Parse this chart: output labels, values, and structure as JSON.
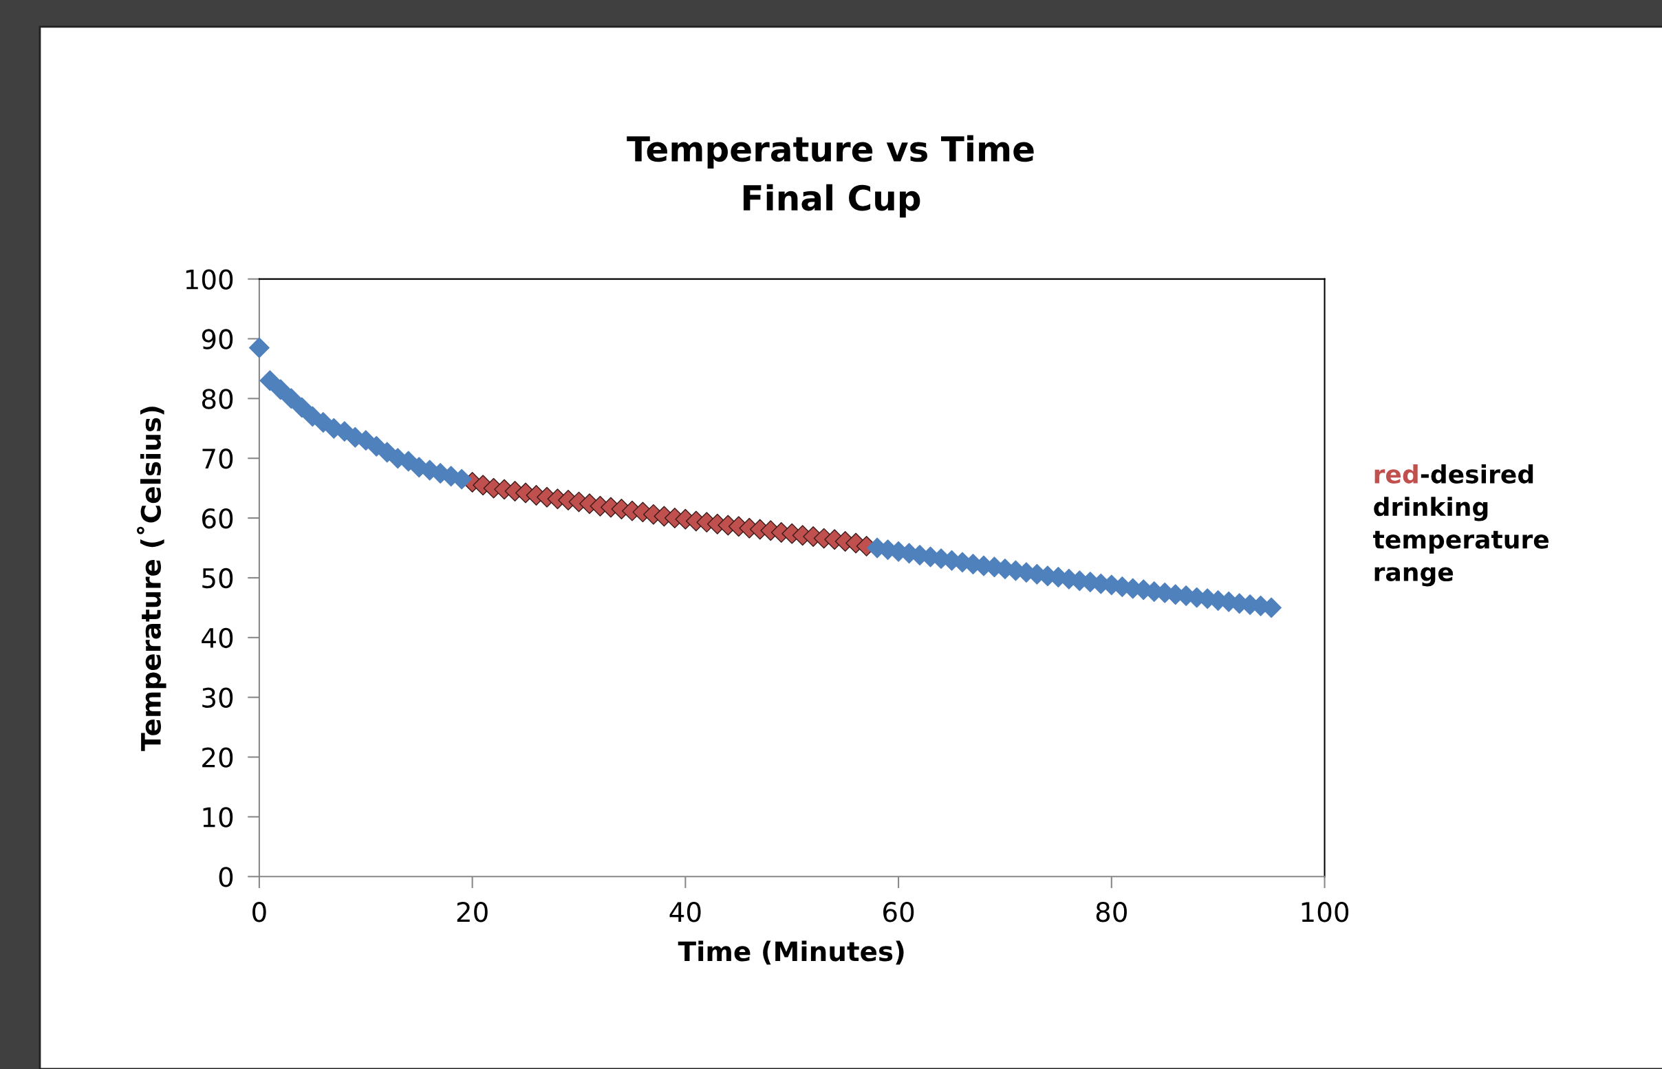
{
  "chart_data": {
    "type": "scatter",
    "title": "Temperature vs Time\nFinal Cup",
    "xlabel": "Time (Minutes)",
    "ylabel": "Temperature (˚Celsius)",
    "xlim": [
      0,
      100
    ],
    "xticks": [
      0,
      20,
      40,
      60,
      80,
      100
    ],
    "ylim": [
      0,
      100
    ],
    "yticks": [
      0,
      10,
      20,
      30,
      40,
      50,
      60,
      70,
      80,
      90,
      100
    ],
    "grid": false,
    "legend": false,
    "marker": "diamond",
    "annotations": [
      "red",
      "-desired\ndrinking\ntemperature\nrange"
    ],
    "series": [
      {
        "color": "#4f81bd",
        "x": [
          0,
          1,
          2,
          3,
          4,
          5,
          6,
          7,
          8,
          9,
          10,
          11,
          12,
          13,
          14,
          15,
          16,
          17,
          18,
          19,
          58,
          59,
          60,
          61,
          62,
          63,
          64,
          65,
          66,
          67,
          68,
          69,
          70,
          71,
          72,
          73,
          74,
          75,
          76,
          77,
          78,
          79,
          80,
          81,
          82,
          83,
          84,
          85,
          86,
          87,
          88,
          89,
          90,
          91,
          92,
          93,
          94,
          95
        ],
        "values": [
          88.5,
          83,
          81.5,
          80,
          78.5,
          77,
          76,
          75,
          74.5,
          73.5,
          73,
          72,
          71,
          70,
          69.5,
          68.5,
          68,
          67.5,
          67,
          66.5,
          55.0,
          54.7,
          54.4,
          54.1,
          53.8,
          53.5,
          53.2,
          52.9,
          52.6,
          52.3,
          52.0,
          51.8,
          51.5,
          51.2,
          50.9,
          50.6,
          50.3,
          50.1,
          49.8,
          49.5,
          49.3,
          49.0,
          48.8,
          48.5,
          48.2,
          48.0,
          47.7,
          47.5,
          47.2,
          47.0,
          46.7,
          46.5,
          46.2,
          46.0,
          45.7,
          45.5,
          45.3,
          45.0
        ]
      },
      {
        "color": "#c0504d",
        "x": [
          20,
          21,
          22,
          23,
          24,
          25,
          26,
          27,
          28,
          29,
          30,
          31,
          32,
          33,
          34,
          35,
          36,
          37,
          38,
          39,
          40,
          41,
          42,
          43,
          44,
          45,
          46,
          47,
          48,
          49,
          50,
          51,
          52,
          53,
          54,
          55,
          56,
          57
        ],
        "values": [
          66,
          65.5,
          65,
          64.8,
          64.5,
          64.2,
          63.8,
          63.5,
          63.2,
          63,
          62.7,
          62.4,
          62,
          61.8,
          61.5,
          61.2,
          61,
          60.6,
          60.3,
          60,
          59.8,
          59.5,
          59.3,
          59,
          58.8,
          58.6,
          58.3,
          58.1,
          57.9,
          57.6,
          57.4,
          57.1,
          56.9,
          56.6,
          56.4,
          56.1,
          55.8,
          55.3
        ]
      }
    ]
  }
}
